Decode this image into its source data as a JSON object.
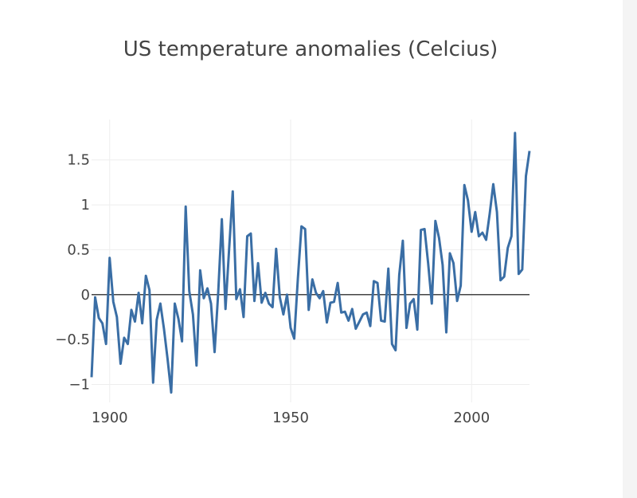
{
  "chart_data": {
    "type": "line",
    "title": "US temperature anomalies (Celcius)",
    "xlabel": "",
    "ylabel": "",
    "xlim": [
      1895,
      2016
    ],
    "ylim": [
      -1.2,
      1.95
    ],
    "grid": true,
    "x_ticks": [
      1900,
      1950,
      2000
    ],
    "x_tick_labels": [
      "1900",
      "1950",
      "2000"
    ],
    "y_ticks": [
      -1,
      -0.5,
      0,
      0.5,
      1,
      1.5
    ],
    "y_tick_labels": [
      "−1",
      "−0.5",
      "0",
      "0.5",
      "1",
      "1.5"
    ],
    "line_color": "#3a6ea5",
    "zero_line_color": "#444444",
    "grid_color": "#eeeeee",
    "series": [
      {
        "x": [
          1895,
          1896,
          1897,
          1898,
          1899,
          1900,
          1901,
          1902,
          1903,
          1904,
          1905,
          1906,
          1907,
          1908,
          1909,
          1910,
          1911,
          1912,
          1913,
          1914,
          1915,
          1916,
          1917,
          1918,
          1919,
          1920,
          1921,
          1922,
          1923,
          1924,
          1925,
          1926,
          1927,
          1928,
          1929,
          1930,
          1931,
          1932,
          1933,
          1934,
          1935,
          1936,
          1937,
          1938,
          1939,
          1940,
          1941,
          1942,
          1943,
          1944,
          1945,
          1946,
          1947,
          1948,
          1949,
          1950,
          1951,
          1952,
          1953,
          1954,
          1955,
          1956,
          1957,
          1958,
          1959,
          1960,
          1961,
          1962,
          1963,
          1964,
          1965,
          1966,
          1967,
          1968,
          1969,
          1970,
          1971,
          1972,
          1973,
          1974,
          1975,
          1976,
          1977,
          1978,
          1979,
          1980,
          1981,
          1982,
          1983,
          1984,
          1985,
          1986,
          1987,
          1988,
          1989,
          1990,
          1991,
          1992,
          1993,
          1994,
          1995,
          1996,
          1997,
          1998,
          1999,
          2000,
          2001,
          2002,
          2003,
          2004,
          2005,
          2006,
          2007,
          2008,
          2009,
          2010,
          2011,
          2012,
          2013,
          2014,
          2015,
          2016
        ],
        "values": [
          -0.92,
          -0.03,
          -0.26,
          -0.32,
          -0.55,
          0.41,
          -0.08,
          -0.25,
          -0.77,
          -0.48,
          -0.55,
          -0.17,
          -0.3,
          0.02,
          -0.32,
          0.21,
          0.05,
          -0.98,
          -0.28,
          -0.1,
          -0.38,
          -0.72,
          -1.09,
          -0.1,
          -0.27,
          -0.52,
          0.98,
          0.04,
          -0.22,
          -0.79,
          0.27,
          -0.04,
          0.07,
          -0.1,
          -0.64,
          0.03,
          0.84,
          -0.16,
          0.5,
          1.15,
          -0.05,
          0.06,
          -0.25,
          0.65,
          0.68,
          -0.07,
          0.35,
          -0.09,
          0.02,
          -0.1,
          -0.14,
          0.51,
          -0.03,
          -0.22,
          0.0,
          -0.37,
          -0.49,
          0.18,
          0.76,
          0.73,
          -0.17,
          0.17,
          0.02,
          -0.04,
          0.04,
          -0.31,
          -0.09,
          -0.08,
          0.13,
          -0.2,
          -0.19,
          -0.29,
          -0.16,
          -0.38,
          -0.3,
          -0.22,
          -0.2,
          -0.35,
          0.15,
          0.13,
          -0.29,
          -0.3,
          0.29,
          -0.55,
          -0.62,
          0.22,
          0.6,
          -0.37,
          -0.1,
          -0.05,
          -0.39,
          0.72,
          0.73,
          0.35,
          -0.1,
          0.82,
          0.63,
          0.33,
          -0.42,
          0.46,
          0.35,
          -0.07,
          0.1,
          1.22,
          1.05,
          0.7,
          0.92,
          0.65,
          0.69,
          0.61,
          0.9,
          1.23,
          0.92,
          0.16,
          0.2,
          0.52,
          0.65,
          1.8,
          0.23,
          0.28,
          1.32,
          1.6
        ]
      }
    ]
  }
}
